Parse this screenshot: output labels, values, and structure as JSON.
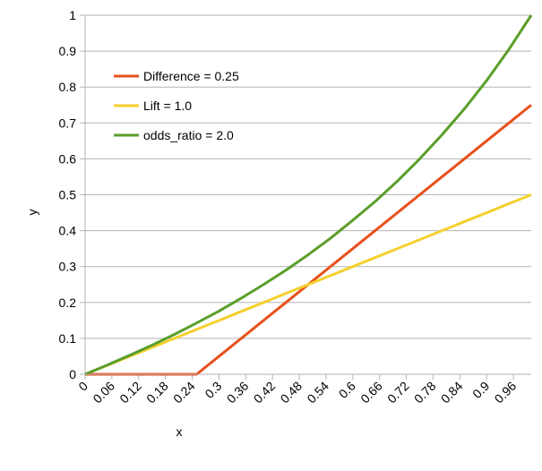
{
  "chart_data": {
    "type": "line",
    "x_label": "x",
    "y_label": "y",
    "x": [
      0,
      0.05,
      0.1,
      0.15,
      0.2,
      0.25,
      0.3,
      0.35,
      0.4,
      0.45,
      0.5,
      0.55,
      0.6,
      0.65,
      0.7,
      0.75,
      0.8,
      0.85,
      0.9,
      0.95,
      1
    ],
    "series": [
      {
        "name": "Difference = 0.25",
        "color": "#e8501c",
        "values": [
          0,
          0,
          0,
          0,
          0,
          0,
          0.05,
          0.1,
          0.15,
          0.2,
          0.25,
          0.3,
          0.35,
          0.4,
          0.45,
          0.5,
          0.55,
          0.6,
          0.65,
          0.7,
          0.75
        ]
      },
      {
        "name": "Lift = 1.0",
        "color": "#f5d02e",
        "values": [
          0,
          0.025,
          0.05,
          0.075,
          0.1,
          0.125,
          0.15,
          0.175,
          0.2,
          0.225,
          0.25,
          0.275,
          0.3,
          0.325,
          0.35,
          0.375,
          0.4,
          0.425,
          0.45,
          0.475,
          0.5
        ]
      },
      {
        "name": "odds_ratio = 2.0",
        "color": "#5a9e2a",
        "values": [
          0,
          0.026,
          0.053,
          0.081,
          0.111,
          0.143,
          0.176,
          0.212,
          0.25,
          0.29,
          0.333,
          0.379,
          0.429,
          0.481,
          0.538,
          0.6,
          0.667,
          0.739,
          0.818,
          0.905,
          1
        ]
      }
    ],
    "xlim": [
      0,
      1
    ],
    "xticks": [
      0,
      0.06,
      0.12,
      0.18,
      0.24,
      0.3,
      0.36,
      0.42,
      0.48,
      0.54,
      0.6,
      0.66,
      0.72,
      0.78,
      0.84,
      0.9,
      0.96
    ],
    "ylim": [
      0,
      1
    ],
    "yticks": [
      0,
      0.1,
      0.2,
      0.3,
      0.4,
      0.5,
      0.6,
      0.7,
      0.8,
      0.9,
      1
    ],
    "grid": true,
    "legend": "upper left"
  }
}
